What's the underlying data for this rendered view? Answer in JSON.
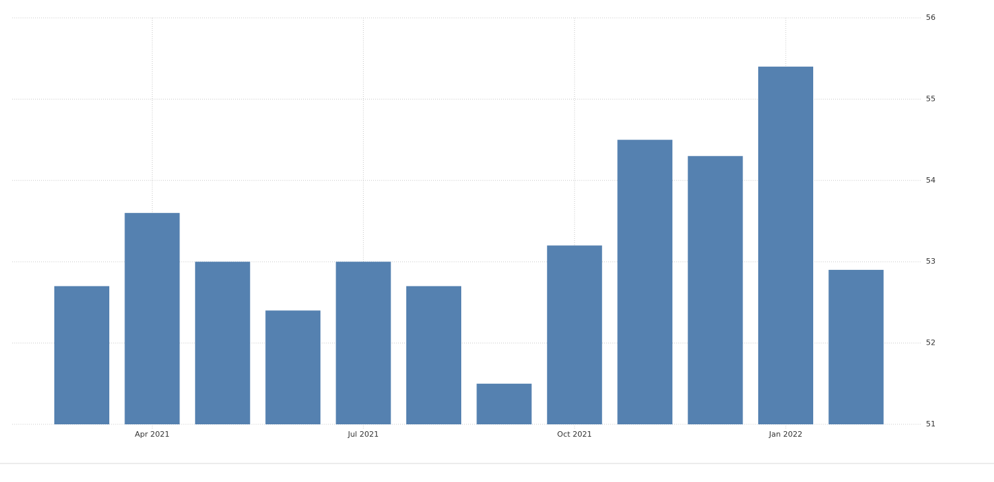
{
  "chart_data": {
    "type": "bar",
    "categories": [
      null,
      "Apr 2021",
      null,
      null,
      "Jul 2021",
      null,
      null,
      "Oct 2021",
      null,
      null,
      "Jan 2022",
      null
    ],
    "values": [
      52.7,
      53.6,
      53.0,
      52.4,
      53.0,
      52.7,
      51.5,
      53.2,
      54.5,
      54.3,
      55.4,
      52.9
    ],
    "color": "#5581b0",
    "ylim": [
      51,
      56
    ],
    "yticks": [
      51,
      52,
      53,
      54,
      55,
      56
    ],
    "grid": true
  }
}
